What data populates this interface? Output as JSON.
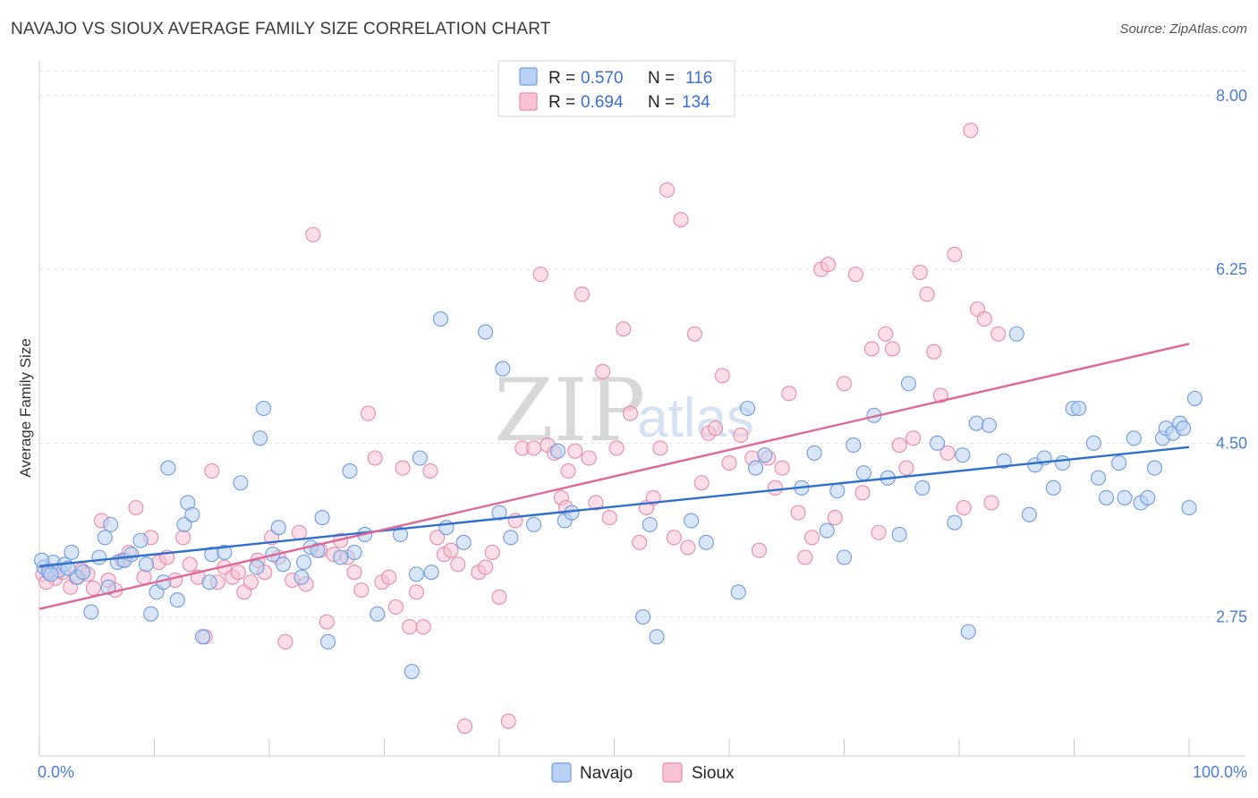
{
  "title": "NAVAJO VS SIOUX AVERAGE FAMILY SIZE CORRELATION CHART",
  "source": "Source: ZipAtlas.com",
  "watermark": {
    "zip": "ZIP",
    "atlas": "atlas"
  },
  "colors": {
    "navajo_fill": "#b9d2f3",
    "navajo_stroke": "#6f9be0",
    "navajo_line": "#2f6fce",
    "sioux_fill": "#f8c3d4",
    "sioux_stroke": "#e98aaa",
    "sioux_line": "#e06896",
    "grid": "#e3e3e3",
    "tick_text": "#4a7fd6"
  },
  "legend": {
    "rows": [
      {
        "r_label": "R = ",
        "r_value": "0.570",
        "n_label": "N = ",
        "n_value": "116"
      },
      {
        "r_label": "R = ",
        "r_value": "0.694",
        "n_label": "N = ",
        "n_value": "134"
      }
    ]
  },
  "bottom_legend": {
    "navajo": "Navajo",
    "sioux": "Sioux"
  },
  "chart_data": {
    "type": "scatter",
    "title": "NAVAJO VS SIOUX AVERAGE FAMILY SIZE CORRELATION CHART",
    "xlabel": "",
    "ylabel": "Average Family Size",
    "xlim": [
      0,
      100
    ],
    "ylim": [
      1.35,
      8.35
    ],
    "x_tick_labels": [
      "0.0%",
      "100.0%"
    ],
    "y_ticks": [
      2.75,
      4.5,
      6.25,
      8.0
    ],
    "y_tick_labels": [
      "2.75",
      "4.50",
      "6.25",
      "8.00"
    ],
    "grid": true,
    "legend_position": "top-center",
    "series": [
      {
        "name": "Navajo",
        "r": 0.57,
        "n": 116,
        "trend": {
          "x": [
            0,
            100
          ],
          "y": [
            3.26,
            4.46
          ]
        },
        "points": [
          [
            0.4,
            3.25
          ],
          [
            0.8,
            3.2
          ],
          [
            1.2,
            3.3
          ],
          [
            1.7,
            3.22
          ],
          [
            2.2,
            3.28
          ],
          [
            2.8,
            3.4
          ],
          [
            3.3,
            3.15
          ],
          [
            3.8,
            3.2
          ],
          [
            4.5,
            2.8
          ],
          [
            5.2,
            3.35
          ],
          [
            5.7,
            3.55
          ],
          [
            6.2,
            3.68
          ],
          [
            6.8,
            3.3
          ],
          [
            7.4,
            3.32
          ],
          [
            8.0,
            3.38
          ],
          [
            8.8,
            3.52
          ],
          [
            9.3,
            3.28
          ],
          [
            9.7,
            2.78
          ],
          [
            10.2,
            3.0
          ],
          [
            10.8,
            3.1
          ],
          [
            11.2,
            4.25
          ],
          [
            12.0,
            2.92
          ],
          [
            12.6,
            3.68
          ],
          [
            12.9,
            3.9
          ],
          [
            13.3,
            3.78
          ],
          [
            14.2,
            2.55
          ],
          [
            15.0,
            3.38
          ],
          [
            16.1,
            3.4
          ],
          [
            17.5,
            4.1
          ],
          [
            18.9,
            3.25
          ],
          [
            19.2,
            4.55
          ],
          [
            19.5,
            4.85
          ],
          [
            20.3,
            3.38
          ],
          [
            20.8,
            3.65
          ],
          [
            21.2,
            3.28
          ],
          [
            22.8,
            3.15
          ],
          [
            23.6,
            3.45
          ],
          [
            24.2,
            3.42
          ],
          [
            24.6,
            3.75
          ],
          [
            25.1,
            2.5
          ],
          [
            26.2,
            3.35
          ],
          [
            27.0,
            4.22
          ],
          [
            27.4,
            3.4
          ],
          [
            28.3,
            3.58
          ],
          [
            29.4,
            2.78
          ],
          [
            31.4,
            3.58
          ],
          [
            32.4,
            2.2
          ],
          [
            32.8,
            3.18
          ],
          [
            33.1,
            4.35
          ],
          [
            34.1,
            3.2
          ],
          [
            34.9,
            5.75
          ],
          [
            35.4,
            3.65
          ],
          [
            36.9,
            3.5
          ],
          [
            38.8,
            5.62
          ],
          [
            40.0,
            3.8
          ],
          [
            40.3,
            5.25
          ],
          [
            43.0,
            3.68
          ],
          [
            45.1,
            4.42
          ],
          [
            45.7,
            3.72
          ],
          [
            46.3,
            3.8
          ],
          [
            52.5,
            2.75
          ],
          [
            53.1,
            3.68
          ],
          [
            53.7,
            2.55
          ],
          [
            56.7,
            3.72
          ],
          [
            60.8,
            3.0
          ],
          [
            61.6,
            4.85
          ],
          [
            62.3,
            4.25
          ],
          [
            63.1,
            4.38
          ],
          [
            66.3,
            4.05
          ],
          [
            67.4,
            4.4
          ],
          [
            68.5,
            3.62
          ],
          [
            69.4,
            4.02
          ],
          [
            70.0,
            3.35
          ],
          [
            70.8,
            4.48
          ],
          [
            71.7,
            4.2
          ],
          [
            72.6,
            4.78
          ],
          [
            73.8,
            4.15
          ],
          [
            74.8,
            3.58
          ],
          [
            75.6,
            5.1
          ],
          [
            76.8,
            4.05
          ],
          [
            78.1,
            4.5
          ],
          [
            79.6,
            3.7
          ],
          [
            80.3,
            4.38
          ],
          [
            80.8,
            2.6
          ],
          [
            81.5,
            4.7
          ],
          [
            82.6,
            4.68
          ],
          [
            83.9,
            4.32
          ],
          [
            85.0,
            5.6
          ],
          [
            86.1,
            3.78
          ],
          [
            86.6,
            4.28
          ],
          [
            87.4,
            4.35
          ],
          [
            88.2,
            4.05
          ],
          [
            89.0,
            4.3
          ],
          [
            89.9,
            4.85
          ],
          [
            90.4,
            4.85
          ],
          [
            91.7,
            4.5
          ],
          [
            92.1,
            4.15
          ],
          [
            92.8,
            3.95
          ],
          [
            93.9,
            4.3
          ],
          [
            94.4,
            3.95
          ],
          [
            95.2,
            4.55
          ],
          [
            95.8,
            3.9
          ],
          [
            96.4,
            3.95
          ],
          [
            97.0,
            4.25
          ],
          [
            97.7,
            4.55
          ],
          [
            98.0,
            4.65
          ],
          [
            98.6,
            4.6
          ],
          [
            99.2,
            4.7
          ],
          [
            99.5,
            4.65
          ],
          [
            100.0,
            3.85
          ],
          [
            100.5,
            4.95
          ],
          [
            0.2,
            3.32
          ],
          [
            1.0,
            3.18
          ],
          [
            2.5,
            3.24
          ],
          [
            6.0,
            3.05
          ],
          [
            14.8,
            3.1
          ],
          [
            23.0,
            3.3
          ],
          [
            41.0,
            3.55
          ],
          [
            58.0,
            3.5
          ]
        ]
      },
      {
        "name": "Sioux",
        "r": 0.694,
        "n": 134,
        "trend": {
          "x": [
            0,
            100
          ],
          "y": [
            2.83,
            5.5
          ]
        },
        "points": [
          [
            0.3,
            3.18
          ],
          [
            0.9,
            3.22
          ],
          [
            1.4,
            3.14
          ],
          [
            2.0,
            3.2
          ],
          [
            2.7,
            3.05
          ],
          [
            3.2,
            3.15
          ],
          [
            3.7,
            3.22
          ],
          [
            4.2,
            3.18
          ],
          [
            4.7,
            3.04
          ],
          [
            5.4,
            3.72
          ],
          [
            6.0,
            3.12
          ],
          [
            6.6,
            3.02
          ],
          [
            7.2,
            3.32
          ],
          [
            7.8,
            3.4
          ],
          [
            8.4,
            3.85
          ],
          [
            9.1,
            3.15
          ],
          [
            9.7,
            3.55
          ],
          [
            10.4,
            3.3
          ],
          [
            11.1,
            3.35
          ],
          [
            11.8,
            3.12
          ],
          [
            12.5,
            3.55
          ],
          [
            13.1,
            3.28
          ],
          [
            13.8,
            3.15
          ],
          [
            14.4,
            2.55
          ],
          [
            15.0,
            4.22
          ],
          [
            15.5,
            3.1
          ],
          [
            16.1,
            3.25
          ],
          [
            16.8,
            3.15
          ],
          [
            17.3,
            3.2
          ],
          [
            17.8,
            3.0
          ],
          [
            18.4,
            3.1
          ],
          [
            19.0,
            3.32
          ],
          [
            19.6,
            3.2
          ],
          [
            20.2,
            3.55
          ],
          [
            20.8,
            3.35
          ],
          [
            21.4,
            2.5
          ],
          [
            22.0,
            3.12
          ],
          [
            22.6,
            3.6
          ],
          [
            23.2,
            3.08
          ],
          [
            23.8,
            6.6
          ],
          [
            24.4,
            3.42
          ],
          [
            25.0,
            2.7
          ],
          [
            25.6,
            3.38
          ],
          [
            26.2,
            3.52
          ],
          [
            26.8,
            3.35
          ],
          [
            27.4,
            3.2
          ],
          [
            28.0,
            3.02
          ],
          [
            28.6,
            4.8
          ],
          [
            29.2,
            4.35
          ],
          [
            29.8,
            3.1
          ],
          [
            30.4,
            3.15
          ],
          [
            31.0,
            2.85
          ],
          [
            31.6,
            4.25
          ],
          [
            32.2,
            2.65
          ],
          [
            32.8,
            3.0
          ],
          [
            33.4,
            2.65
          ],
          [
            34.0,
            4.22
          ],
          [
            34.6,
            3.55
          ],
          [
            35.2,
            3.38
          ],
          [
            35.8,
            3.42
          ],
          [
            36.4,
            3.28
          ],
          [
            37.0,
            1.65
          ],
          [
            38.2,
            3.2
          ],
          [
            38.8,
            3.25
          ],
          [
            39.4,
            3.4
          ],
          [
            40.0,
            2.95
          ],
          [
            40.8,
            1.7
          ],
          [
            41.4,
            3.72
          ],
          [
            42.0,
            4.45
          ],
          [
            43.0,
            4.45
          ],
          [
            43.6,
            6.2
          ],
          [
            44.2,
            4.48
          ],
          [
            44.8,
            4.4
          ],
          [
            45.4,
            3.95
          ],
          [
            46.0,
            4.22
          ],
          [
            46.6,
            4.42
          ],
          [
            47.2,
            6.0
          ],
          [
            47.8,
            4.35
          ],
          [
            48.4,
            3.9
          ],
          [
            49.0,
            5.22
          ],
          [
            49.6,
            3.75
          ],
          [
            50.2,
            4.45
          ],
          [
            50.8,
            5.65
          ],
          [
            51.4,
            4.8
          ],
          [
            52.2,
            3.5
          ],
          [
            52.8,
            3.85
          ],
          [
            53.4,
            3.95
          ],
          [
            54.0,
            4.45
          ],
          [
            54.6,
            7.05
          ],
          [
            55.2,
            3.55
          ],
          [
            55.8,
            6.75
          ],
          [
            56.4,
            3.45
          ],
          [
            57.0,
            5.6
          ],
          [
            57.6,
            4.1
          ],
          [
            58.2,
            4.6
          ],
          [
            58.8,
            4.65
          ],
          [
            59.4,
            5.18
          ],
          [
            60.0,
            4.3
          ],
          [
            61.0,
            4.58
          ],
          [
            62.0,
            4.35
          ],
          [
            62.6,
            3.42
          ],
          [
            63.4,
            4.35
          ],
          [
            64.0,
            4.05
          ],
          [
            64.6,
            4.25
          ],
          [
            65.2,
            5.0
          ],
          [
            66.0,
            3.8
          ],
          [
            66.6,
            3.35
          ],
          [
            67.2,
            3.55
          ],
          [
            68.0,
            6.25
          ],
          [
            68.6,
            6.3
          ],
          [
            69.2,
            3.75
          ],
          [
            70.0,
            5.1
          ],
          [
            71.0,
            6.2
          ],
          [
            71.6,
            4.0
          ],
          [
            72.4,
            5.45
          ],
          [
            73.0,
            3.6
          ],
          [
            73.6,
            5.6
          ],
          [
            74.2,
            5.45
          ],
          [
            74.8,
            4.48
          ],
          [
            75.4,
            4.25
          ],
          [
            76.0,
            4.55
          ],
          [
            76.6,
            6.22
          ],
          [
            77.2,
            6.0
          ],
          [
            77.8,
            5.42
          ],
          [
            78.4,
            4.98
          ],
          [
            79.0,
            4.4
          ],
          [
            79.6,
            6.4
          ],
          [
            80.4,
            3.85
          ],
          [
            81.0,
            7.65
          ],
          [
            81.6,
            5.85
          ],
          [
            82.2,
            5.75
          ],
          [
            82.8,
            3.9
          ],
          [
            83.4,
            5.6
          ],
          [
            0.6,
            3.1
          ],
          [
            45.8,
            3.85
          ]
        ]
      }
    ]
  }
}
